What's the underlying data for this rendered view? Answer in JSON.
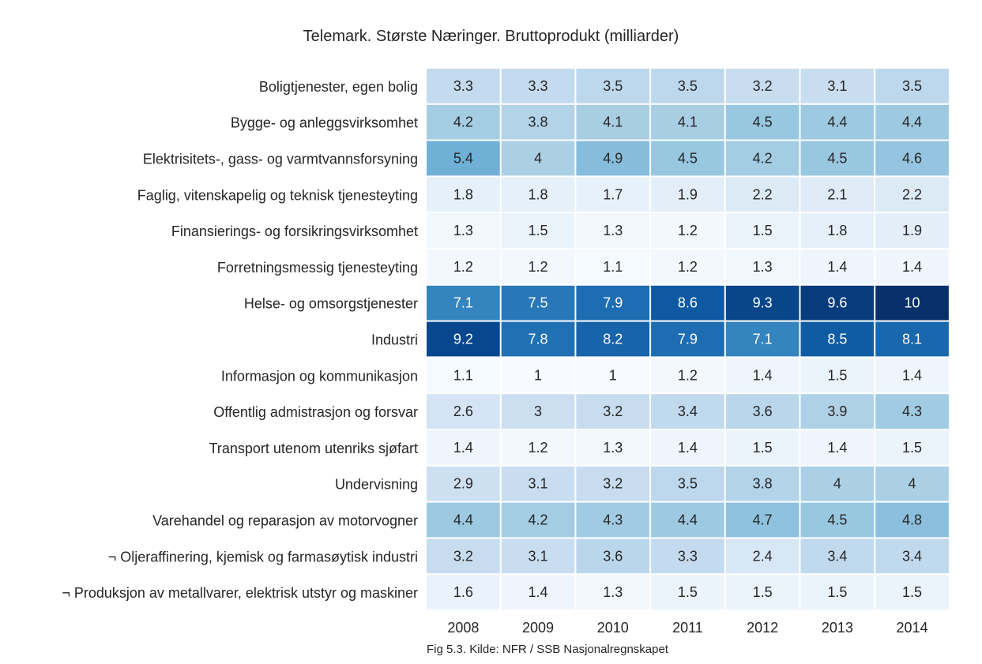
{
  "chart_data": {
    "type": "heatmap",
    "title": "Telemark. Største Næringer. Bruttoprodukt (milliarder)",
    "x": [
      "2008",
      "2009",
      "2010",
      "2011",
      "2012",
      "2013",
      "2014"
    ],
    "y": [
      "Boligtjenester, egen bolig",
      "Bygge- og anleggsvirksomhet",
      "Elektrisitets-, gass- og varmtvannsforsyning",
      "Faglig, vitenskapelig og teknisk tjenesteyting",
      "Finansierings- og forsikringsvirksomhet",
      "Forretningsmessig tjenesteyting",
      "Helse- og omsorgstjenester",
      "Industri",
      "Informasjon og kommunikasjon",
      "Offentlig admistrasjon og forsvar",
      "Transport utenom utenriks sjøfart",
      "Undervisning",
      "Varehandel og reparasjon av motorvogner",
      "¬ Oljeraffinering, kjemisk og farmasøytisk industri",
      "¬ Produksjon av metallvarer, elektrisk utstyr og maskiner"
    ],
    "values": [
      [
        "3.3",
        "3.3",
        "3.5",
        "3.5",
        "3.2",
        "3.1",
        "3.5"
      ],
      [
        "4.2",
        "3.8",
        "4.1",
        "4.1",
        "4.5",
        "4.4",
        "4.4"
      ],
      [
        "5.4",
        "4",
        "4.9",
        "4.5",
        "4.2",
        "4.5",
        "4.6"
      ],
      [
        "1.8",
        "1.8",
        "1.7",
        "1.9",
        "2.2",
        "2.1",
        "2.2"
      ],
      [
        "1.3",
        "1.5",
        "1.3",
        "1.2",
        "1.5",
        "1.8",
        "1.9"
      ],
      [
        "1.2",
        "1.2",
        "1.1",
        "1.2",
        "1.3",
        "1.4",
        "1.4"
      ],
      [
        "7.1",
        "7.5",
        "7.9",
        "8.6",
        "9.3",
        "9.6",
        "10"
      ],
      [
        "9.2",
        "7.8",
        "8.2",
        "7.9",
        "7.1",
        "8.5",
        "8.1"
      ],
      [
        "1.1",
        "1",
        "1",
        "1.2",
        "1.4",
        "1.5",
        "1.4"
      ],
      [
        "2.6",
        "3",
        "3.2",
        "3.4",
        "3.6",
        "3.9",
        "4.3"
      ],
      [
        "1.4",
        "1.2",
        "1.3",
        "1.4",
        "1.5",
        "1.4",
        "1.5"
      ],
      [
        "2.9",
        "3.1",
        "3.2",
        "3.5",
        "3.8",
        "4",
        "4"
      ],
      [
        "4.4",
        "4.2",
        "4.3",
        "4.4",
        "4.7",
        "4.5",
        "4.8"
      ],
      [
        "3.2",
        "3.1",
        "3.6",
        "3.3",
        "2.4",
        "3.4",
        "3.4"
      ],
      [
        "1.6",
        "1.4",
        "1.3",
        "1.5",
        "1.5",
        "1.5",
        "1.5"
      ]
    ],
    "colormap": "Blues",
    "color_range": [
      1,
      10
    ],
    "grid": false,
    "legend": "none"
  },
  "source_note": "Fig 5.3. Kilde: NFR / SSB Nasjonalregnskapet"
}
